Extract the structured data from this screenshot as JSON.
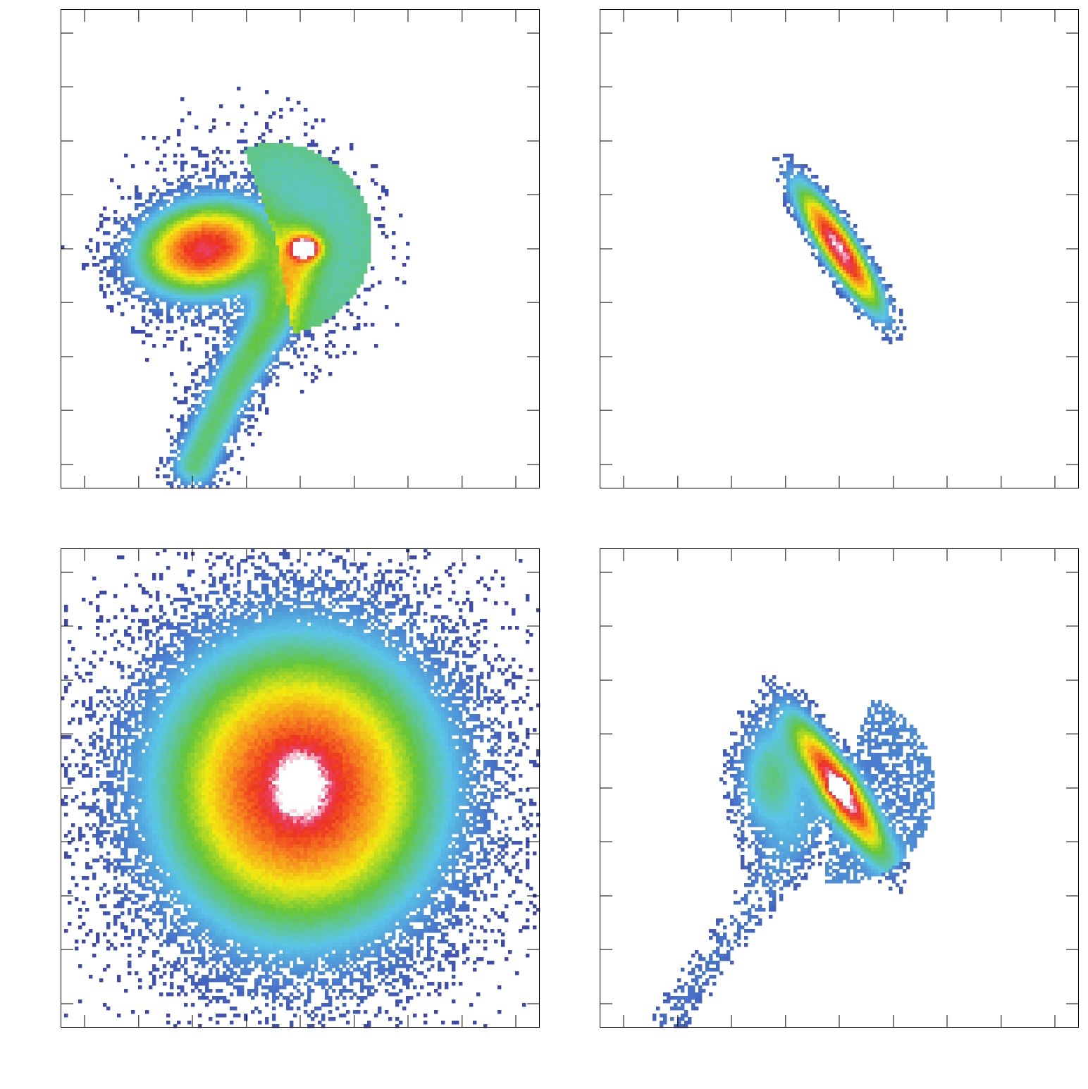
{
  "chart_data": [
    {
      "type": "heatmap",
      "panel": "top-left",
      "title": "",
      "xlabel": "",
      "ylabel": "",
      "xlim": [
        0,
        1
      ],
      "ylim": [
        0,
        1
      ],
      "x_major_ticks": [
        0.05,
        0.163,
        0.275,
        0.388,
        0.5,
        0.613,
        0.725,
        0.838,
        0.95
      ],
      "y_major_ticks": [
        0.05,
        0.163,
        0.275,
        0.388,
        0.5,
        0.613,
        0.725,
        0.838,
        0.95
      ],
      "tick_labels_visible": false,
      "grid": false,
      "components": [
        {
          "shape": "gaussian_blob",
          "cx": 0.3,
          "cy": 0.5,
          "sx": 0.09,
          "sy": 0.06,
          "angle": 10,
          "peak": 0.85
        },
        {
          "shape": "gaussian_blob",
          "cx": 0.51,
          "cy": 0.5,
          "sx": 0.018,
          "sy": 0.014,
          "angle": 0,
          "peak": 1.0
        },
        {
          "shape": "arc_spray",
          "cx": 0.45,
          "cy": 0.52,
          "r": 0.2,
          "start": -80,
          "end": 110,
          "peak": 0.3
        },
        {
          "shape": "stream",
          "points": [
            [
              0.5,
              0.5
            ],
            [
              0.44,
              0.35
            ],
            [
              0.36,
              0.22
            ],
            [
              0.28,
              0.05
            ]
          ],
          "peak": 0.35
        },
        {
          "shape": "halo",
          "cx": 0.4,
          "cy": 0.5,
          "radius": 0.35,
          "peak": 0.08
        }
      ]
    },
    {
      "type": "heatmap",
      "panel": "top-right",
      "title": "",
      "xlabel": "",
      "ylabel": "",
      "xlim": [
        0,
        1
      ],
      "ylim": [
        0,
        1
      ],
      "x_major_ticks": [
        0.05,
        0.163,
        0.275,
        0.388,
        0.5,
        0.613,
        0.725,
        0.838,
        0.95
      ],
      "y_major_ticks": [
        0.05,
        0.163,
        0.275,
        0.388,
        0.5,
        0.613,
        0.725,
        0.838,
        0.95
      ],
      "tick_labels_visible": false,
      "grid": false,
      "components": [
        {
          "shape": "gaussian_blob",
          "cx": 0.5,
          "cy": 0.5,
          "sx": 0.1,
          "sy": 0.023,
          "angle": -57,
          "peak": 1.0,
          "edge_cutoff": 0.05
        }
      ]
    },
    {
      "type": "heatmap",
      "panel": "bottom-left",
      "title": "",
      "xlabel": "",
      "ylabel": "",
      "xlim": [
        0,
        1
      ],
      "ylim": [
        0,
        1
      ],
      "x_major_ticks": [
        0.05,
        0.163,
        0.275,
        0.388,
        0.5,
        0.613,
        0.725,
        0.838,
        0.95
      ],
      "y_major_ticks": [
        0.05,
        0.163,
        0.275,
        0.388,
        0.5,
        0.613,
        0.725,
        0.838,
        0.95
      ],
      "tick_labels_visible": false,
      "grid": false,
      "components": [
        {
          "shape": "gaussian_blob",
          "cx": 0.5,
          "cy": 0.5,
          "sx": 0.19,
          "sy": 0.2,
          "angle": 0,
          "peak": 0.93
        },
        {
          "shape": "gaussian_blob",
          "cx": 0.5,
          "cy": 0.505,
          "sx": 0.035,
          "sy": 0.045,
          "angle": 0,
          "peak": 0.25
        }
      ]
    },
    {
      "type": "heatmap",
      "panel": "bottom-right",
      "title": "",
      "xlabel": "",
      "ylabel": "",
      "xlim": [
        0,
        1
      ],
      "ylim": [
        0,
        1
      ],
      "x_major_ticks": [
        0.05,
        0.163,
        0.275,
        0.388,
        0.5,
        0.613,
        0.725,
        0.838,
        0.95
      ],
      "y_major_ticks": [
        0.05,
        0.163,
        0.275,
        0.388,
        0.5,
        0.613,
        0.725,
        0.838,
        0.95
      ],
      "tick_labels_visible": false,
      "grid": false,
      "components": [
        {
          "shape": "gaussian_blob",
          "cx": 0.5,
          "cy": 0.5,
          "sx": 0.1,
          "sy": 0.024,
          "angle": -57,
          "peak": 0.95,
          "edge_cutoff": 0.05
        },
        {
          "shape": "gaussian_blob",
          "cx": 0.5,
          "cy": 0.5,
          "sx": 0.012,
          "sy": 0.01,
          "angle": 0,
          "peak": 1.0
        },
        {
          "shape": "gaussian_blob",
          "cx": 0.36,
          "cy": 0.52,
          "sx": 0.05,
          "sy": 0.09,
          "angle": 0,
          "peak": 0.3
        },
        {
          "shape": "arc_spray",
          "cx": 0.5,
          "cy": 0.5,
          "r": 0.2,
          "start": -100,
          "end": 70,
          "peak": 0.12
        },
        {
          "shape": "stream",
          "points": [
            [
              0.46,
              0.45
            ],
            [
              0.35,
              0.3
            ],
            [
              0.22,
              0.12
            ],
            [
              0.15,
              0.02
            ]
          ],
          "peak": 0.1
        },
        {
          "shape": "halo",
          "cx": 0.48,
          "cy": 0.5,
          "radius": 0.38,
          "peak": 0.05
        }
      ]
    }
  ],
  "colormap": {
    "stops": [
      [
        0.0,
        "#3b3ea6"
      ],
      [
        0.12,
        "#4a7ed0"
      ],
      [
        0.24,
        "#5bc6e8"
      ],
      [
        0.4,
        "#64c63a"
      ],
      [
        0.55,
        "#f2ea10"
      ],
      [
        0.7,
        "#f7901e"
      ],
      [
        0.85,
        "#ee3320"
      ],
      [
        0.93,
        "#e8406a"
      ],
      [
        1.0,
        "#ffffff"
      ]
    ],
    "axis_color": "#000000"
  }
}
